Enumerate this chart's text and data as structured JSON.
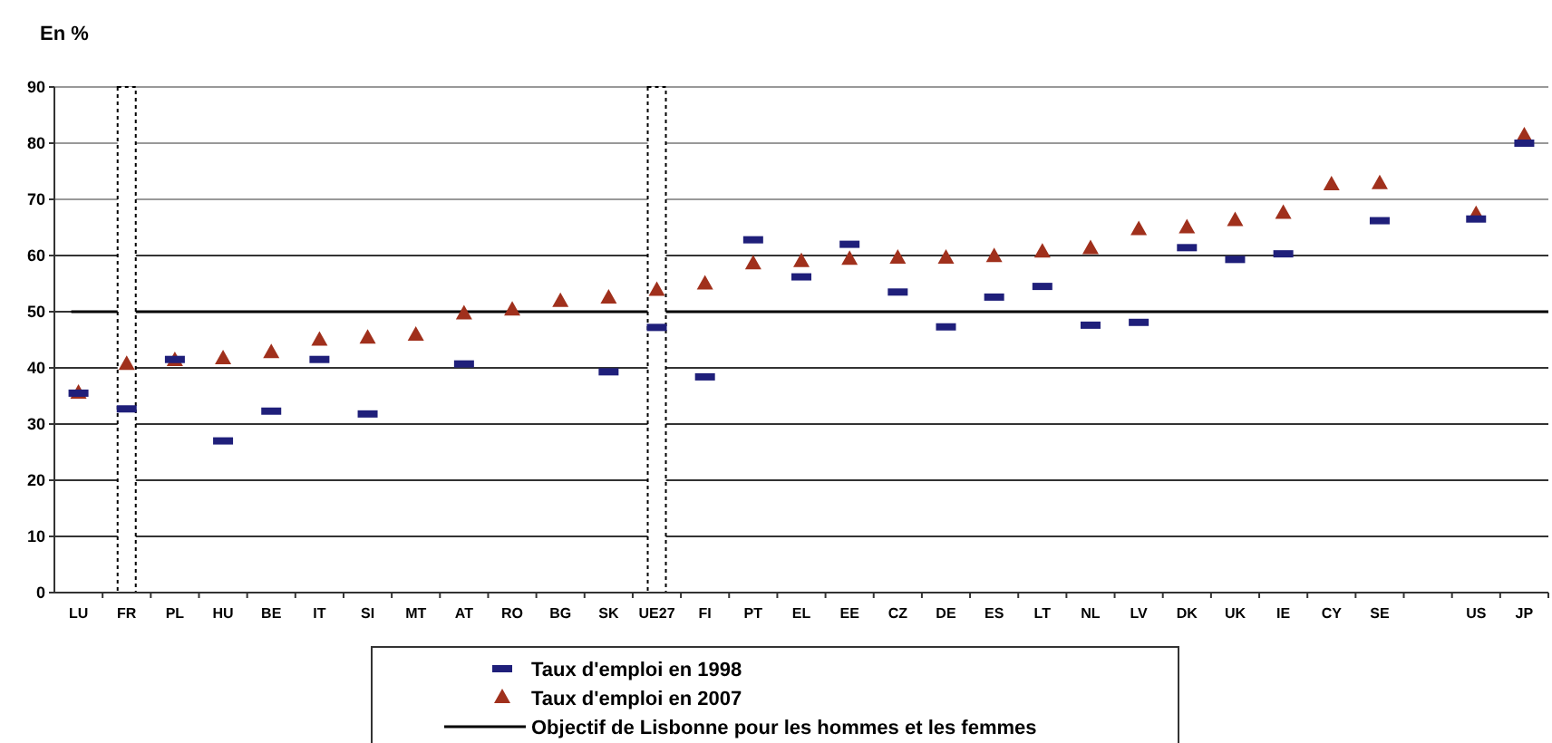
{
  "chart_data": {
    "type": "scatter",
    "ylabel": "En %",
    "categories": [
      "LU",
      "FR",
      "PL",
      "HU",
      "BE",
      "IT",
      "SI",
      "MT",
      "AT",
      "RO",
      "BG",
      "SK",
      "UE27",
      "FI",
      "PT",
      "EL",
      "EE",
      "CZ",
      "DE",
      "ES",
      "LT",
      "NL",
      "LV",
      "DK",
      "UK",
      "IE",
      "CY",
      "SE",
      null,
      "US",
      "JP"
    ],
    "series": [
      {
        "name": "Taux d'emploi en 1998",
        "color": "#1f1f7a",
        "values": [
          35.5,
          32.7,
          41.5,
          27,
          32.3,
          41.5,
          31.8,
          null,
          40.7,
          null,
          null,
          39.3,
          47.2,
          38.4,
          62.8,
          56.2,
          62,
          53.5,
          47.3,
          52.6,
          54.5,
          47.6,
          48.1,
          61.4,
          59.3,
          60.3,
          null,
          66.2,
          null,
          66.5,
          80
        ]
      },
      {
        "name": "Taux d'emploi en 2007",
        "color": "#a0301c",
        "marker": "triangle",
        "values": [
          35.5,
          40.6,
          41.3,
          41.6,
          42.7,
          44.9,
          45.3,
          45.8,
          49.6,
          50.3,
          51.8,
          52.4,
          53.8,
          54.9,
          58.5,
          58.9,
          59.3,
          59.5,
          59.5,
          59.8,
          60.6,
          61.2,
          64.6,
          64.9,
          66.2,
          67.5,
          72.6,
          72.8,
          null,
          67.3,
          81.3
        ]
      }
    ],
    "ylim": [
      0,
      90
    ],
    "yticks": [
      0,
      10,
      20,
      30,
      40,
      50,
      60,
      70,
      80,
      90
    ],
    "grid": "y",
    "legend": "bottom",
    "ref_lines": [
      {
        "axis": "y",
        "value": 50,
        "label": "Objectif de Lisbonne pour les hommes et les femmes",
        "color": "#000000",
        "line_style": "solid"
      }
    ],
    "bands": [
      {
        "axis": "x",
        "from": "FR",
        "to": "FR",
        "color": "#ffffff"
      },
      {
        "axis": "x",
        "from": "UE27",
        "to": "UE27",
        "color": "#ffffff"
      }
    ]
  }
}
